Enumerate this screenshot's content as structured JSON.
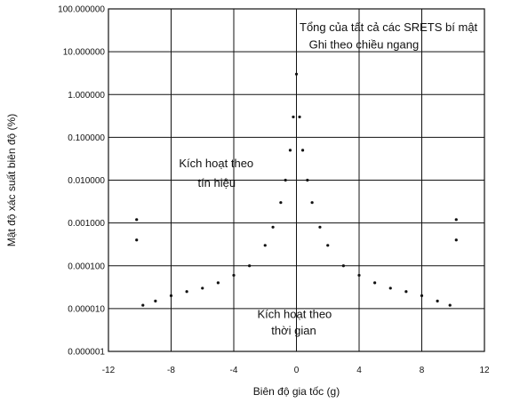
{
  "chart_data": {
    "type": "scatter",
    "xlabel": "Biên độ gia tốc (g)",
    "ylabel": "Mật độ xác suất biên độ (%)",
    "xlim": [
      -12,
      12
    ],
    "ylim": [
      1e-06,
      100
    ],
    "yscale": "log",
    "grid": true,
    "xticks": [
      -12,
      -8,
      -4,
      0,
      4,
      8,
      12
    ],
    "xtick_labels": [
      "-12",
      "-8",
      "-4",
      "0",
      "4",
      "8",
      "12"
    ],
    "yticks": [
      1e-06,
      1e-05,
      0.0001,
      0.001,
      0.01,
      0.1,
      1,
      10,
      100
    ],
    "ytick_labels": [
      "0.000001",
      "0.000010",
      "0.000100",
      "0.001000",
      "0.010000",
      "0.100000",
      "1.000000",
      "10.000000",
      "100.000000"
    ],
    "annotations": [
      {
        "text": "Tổng của tất cả các SRETS bí mật",
        "x": 0.2,
        "y": 30
      },
      {
        "text": "Ghi theo chiều ngang",
        "x": 0.8,
        "y": 12
      },
      {
        "text": "Kích hoạt theo",
        "x": -7.5,
        "y": 0.02
      },
      {
        "text": "tín hiệu",
        "x": -6.3,
        "y": 0.007
      },
      {
        "text": "Kích hoạt theo",
        "x": -2.5,
        "y": 6e-06
      },
      {
        "text": "thời gian",
        "x": -1.6,
        "y": 2.5e-06
      }
    ],
    "series": [
      {
        "x": [
          -10.2,
          -10.2,
          -9.8,
          -9.0,
          -8.0,
          -7.0,
          -6.0,
          -5.0,
          -4.0,
          -3.0,
          -2.0,
          -1.5,
          -1.0,
          -0.7,
          -0.4,
          -0.2,
          0.0,
          0.2,
          0.4,
          0.7,
          1.0,
          1.5,
          2.0,
          3.0,
          4.0,
          5.0,
          6.0,
          7.0,
          8.0,
          9.0,
          9.8,
          10.2,
          10.2
        ],
        "y": [
          0.0012,
          0.0004,
          1.2e-05,
          1.5e-05,
          2e-05,
          2.5e-05,
          3e-05,
          4e-05,
          6e-05,
          0.0001,
          0.0003,
          0.0008,
          0.003,
          0.01,
          0.05,
          0.3,
          3,
          0.3,
          0.05,
          0.01,
          0.003,
          0.0008,
          0.0003,
          0.0001,
          6e-05,
          4e-05,
          3e-05,
          2.5e-05,
          2e-05,
          1.5e-05,
          1.2e-05,
          0.0012,
          0.0004
        ]
      }
    ]
  }
}
